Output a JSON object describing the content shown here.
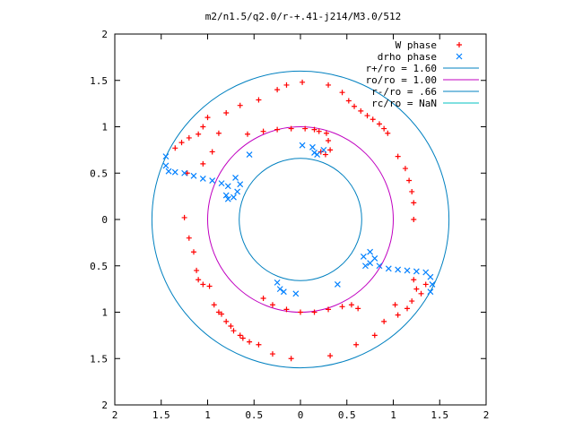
{
  "chart_data": {
    "type": "scatter",
    "title": "m2/n1.5/q2.0/r-+.41-j214/M3.0/512",
    "xlim": [
      -2,
      2
    ],
    "ylim": [
      -2,
      2
    ],
    "x_ticks": [
      -2,
      -1.5,
      -1,
      -0.5,
      0,
      0.5,
      1,
      1.5,
      2
    ],
    "y_ticks": [
      -2,
      -1.5,
      -1,
      -0.5,
      0,
      0.5,
      1,
      1.5,
      2
    ],
    "x_tick_labels": [
      "2",
      "1.5",
      "1",
      "0.5",
      "0",
      "0.5",
      "1",
      "1.5",
      "2"
    ],
    "y_tick_labels": [
      "2",
      "1.5",
      "1",
      "0.5",
      "0",
      "0.5",
      "1",
      "1.5",
      "2"
    ],
    "grid": false,
    "legend_position": "top-right",
    "legend": [
      {
        "label": "W phase",
        "marker": "plus",
        "color": "#ff0000"
      },
      {
        "label": "drho phase",
        "marker": "cross",
        "color": "#0080ff"
      },
      {
        "label": "r+/ro = 1.60",
        "marker": "line",
        "color": "#0080c0"
      },
      {
        "label": "ro/ro = 1.00",
        "marker": "line",
        "color": "#c000c0"
      },
      {
        "label": "r-/ro = .66",
        "marker": "line",
        "color": "#0080c0"
      },
      {
        "label": "rc/ro = NaN",
        "marker": "line",
        "color": "#00c0c0"
      }
    ],
    "circles": [
      {
        "name": "r+/ro = 1.60",
        "r": 1.6,
        "color": "#0080c0"
      },
      {
        "name": "ro/ro = 1.00",
        "r": 1.0,
        "color": "#c000c0"
      },
      {
        "name": "r-/ro = .66",
        "r": 0.66,
        "color": "#0080c0"
      }
    ],
    "series": [
      {
        "name": "W phase",
        "color": "#ff0000",
        "points": [
          [
            -0.57,
            0.92
          ],
          [
            -0.4,
            0.95
          ],
          [
            -0.25,
            0.97
          ],
          [
            -0.1,
            0.98
          ],
          [
            0.05,
            0.98
          ],
          [
            0.15,
            0.97
          ],
          [
            0.2,
            0.95
          ],
          [
            0.28,
            0.93
          ],
          [
            0.3,
            0.85
          ],
          [
            0.32,
            0.75
          ],
          [
            0.27,
            0.7
          ],
          [
            0.22,
            0.73
          ],
          [
            0.45,
            1.37
          ],
          [
            0.52,
            1.28
          ],
          [
            0.58,
            1.22
          ],
          [
            0.65,
            1.17
          ],
          [
            0.72,
            1.12
          ],
          [
            0.78,
            1.08
          ],
          [
            0.85,
            1.03
          ],
          [
            0.9,
            0.98
          ],
          [
            0.94,
            0.93
          ],
          [
            -0.15,
            1.45
          ],
          [
            -0.25,
            1.4
          ],
          [
            0.02,
            1.48
          ],
          [
            0.3,
            1.45
          ],
          [
            -0.45,
            1.29
          ],
          [
            -0.65,
            1.23
          ],
          [
            -0.8,
            1.15
          ],
          [
            -1.0,
            1.1
          ],
          [
            -1.05,
            1.0
          ],
          [
            -1.1,
            0.92
          ],
          [
            -1.2,
            0.88
          ],
          [
            -1.28,
            0.83
          ],
          [
            -1.35,
            0.77
          ],
          [
            -0.88,
            0.93
          ],
          [
            -0.95,
            0.73
          ],
          [
            -1.05,
            0.6
          ],
          [
            -1.22,
            0.5
          ],
          [
            1.05,
            0.68
          ],
          [
            1.13,
            0.55
          ],
          [
            1.17,
            0.42
          ],
          [
            1.2,
            0.3
          ],
          [
            1.22,
            0.18
          ],
          [
            1.22,
            0.0
          ],
          [
            -1.25,
            0.02
          ],
          [
            -1.2,
            -0.2
          ],
          [
            -1.15,
            -0.35
          ],
          [
            -1.12,
            -0.55
          ],
          [
            -1.1,
            -0.65
          ],
          [
            -1.05,
            -0.7
          ],
          [
            -0.98,
            -0.72
          ],
          [
            -0.88,
            -1.0
          ],
          [
            -0.8,
            -1.1
          ],
          [
            -0.72,
            -1.2
          ],
          [
            -0.62,
            -1.28
          ],
          [
            -0.55,
            -1.32
          ],
          [
            -0.45,
            -1.35
          ],
          [
            -0.3,
            -1.45
          ],
          [
            -0.1,
            -1.5
          ],
          [
            -0.93,
            -0.92
          ],
          [
            -0.85,
            -1.02
          ],
          [
            -0.75,
            -1.15
          ],
          [
            -0.65,
            -1.25
          ],
          [
            -0.4,
            -0.85
          ],
          [
            -0.3,
            -0.92
          ],
          [
            -0.15,
            -0.97
          ],
          [
            0.0,
            -1.0
          ],
          [
            0.15,
            -1.0
          ],
          [
            0.3,
            -0.97
          ],
          [
            0.45,
            -0.94
          ],
          [
            0.55,
            -0.92
          ],
          [
            0.62,
            -0.96
          ],
          [
            1.22,
            -0.65
          ],
          [
            1.25,
            -0.75
          ],
          [
            1.2,
            -0.88
          ],
          [
            1.15,
            -0.96
          ],
          [
            1.05,
            -1.03
          ],
          [
            0.9,
            -1.1
          ],
          [
            0.8,
            -1.25
          ],
          [
            0.6,
            -1.35
          ],
          [
            0.32,
            -1.47
          ],
          [
            1.3,
            -0.8
          ],
          [
            1.35,
            -0.7
          ],
          [
            1.02,
            -0.92
          ]
        ]
      },
      {
        "name": "drho phase",
        "color": "#0080ff",
        "points": [
          [
            -1.45,
            0.68
          ],
          [
            -1.45,
            0.58
          ],
          [
            -1.42,
            0.52
          ],
          [
            -1.35,
            0.51
          ],
          [
            -1.25,
            0.5
          ],
          [
            -1.15,
            0.47
          ],
          [
            -1.05,
            0.44
          ],
          [
            -0.95,
            0.42
          ],
          [
            -0.85,
            0.39
          ],
          [
            -0.78,
            0.36
          ],
          [
            -0.8,
            0.26
          ],
          [
            -0.78,
            0.22
          ],
          [
            -0.72,
            0.24
          ],
          [
            -0.68,
            0.3
          ],
          [
            -0.65,
            0.38
          ],
          [
            -0.55,
            0.7
          ],
          [
            -0.7,
            0.45
          ],
          [
            0.02,
            0.8
          ],
          [
            0.13,
            0.78
          ],
          [
            0.15,
            0.72
          ],
          [
            0.18,
            0.7
          ],
          [
            0.25,
            0.75
          ],
          [
            0.68,
            -0.4
          ],
          [
            0.75,
            -0.47
          ],
          [
            0.85,
            -0.5
          ],
          [
            0.95,
            -0.53
          ],
          [
            1.05,
            -0.54
          ],
          [
            1.15,
            -0.55
          ],
          [
            1.25,
            -0.56
          ],
          [
            1.35,
            -0.57
          ],
          [
            1.4,
            -0.62
          ],
          [
            1.42,
            -0.7
          ],
          [
            1.4,
            -0.78
          ],
          [
            0.8,
            -0.42
          ],
          [
            0.7,
            -0.5
          ],
          [
            0.75,
            -0.35
          ],
          [
            -0.25,
            -0.68
          ],
          [
            -0.22,
            -0.75
          ],
          [
            -0.18,
            -0.78
          ],
          [
            -0.05,
            -0.8
          ],
          [
            0.4,
            -0.7
          ]
        ]
      }
    ]
  }
}
